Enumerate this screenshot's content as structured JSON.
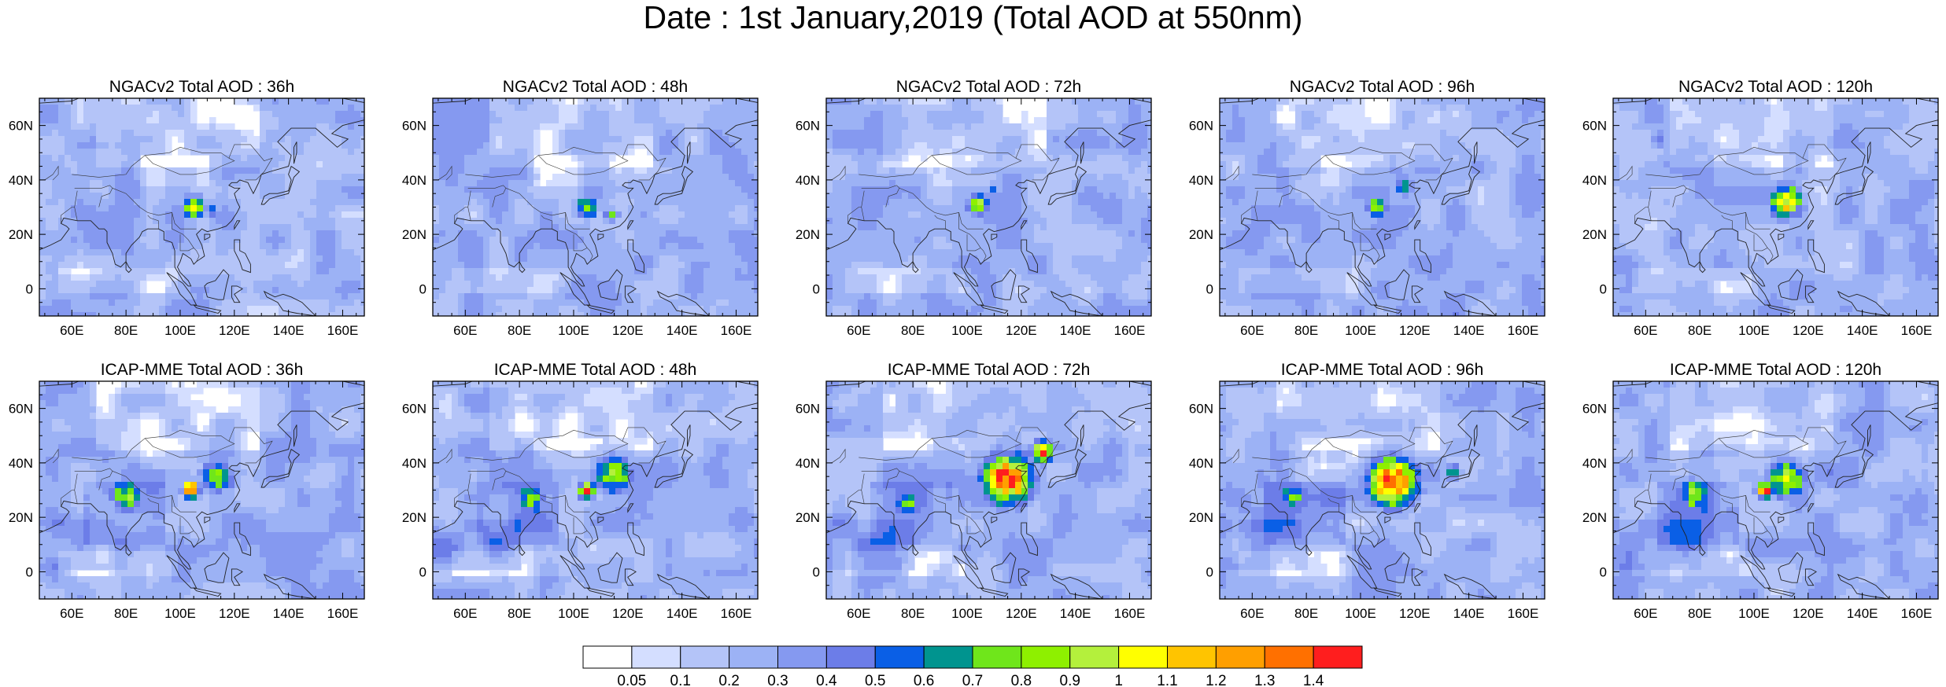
{
  "title": "Date : 1st January,2019 (Total AOD at 550nm)",
  "map": {
    "lon_range": [
      48,
      168
    ],
    "lat_range": [
      -10,
      70
    ],
    "lon_ticks": [
      "60E",
      "80E",
      "100E",
      "120E",
      "140E",
      "160E"
    ],
    "lat_ticks": [
      "0",
      "20N",
      "40N",
      "60N"
    ]
  },
  "panels": [
    {
      "row": 0,
      "title": "NGACv2 Total AOD : 36h",
      "model": "NGACv2",
      "lead": "36h",
      "hotspots": [
        {
          "lon": 105,
          "lat": 30,
          "r": 4,
          "peak": 1.05
        },
        {
          "lon": 112,
          "lat": 28,
          "r": 3,
          "peak": 0.55
        }
      ]
    },
    {
      "row": 0,
      "title": "NGACv2 Total AOD : 48h",
      "model": "NGACv2",
      "lead": "48h",
      "hotspots": [
        {
          "lon": 105,
          "lat": 30,
          "r": 4,
          "peak": 1.0
        },
        {
          "lon": 114,
          "lat": 27,
          "r": 3,
          "peak": 0.65
        }
      ]
    },
    {
      "row": 0,
      "title": "NGACv2 Total AOD : 72h",
      "model": "NGACv2",
      "lead": "72h",
      "hotspots": [
        {
          "lon": 104,
          "lat": 31,
          "r": 4,
          "peak": 0.95
        },
        {
          "lon": 110,
          "lat": 36,
          "r": 3,
          "peak": 0.55
        }
      ]
    },
    {
      "row": 0,
      "title": "NGACv2 Total AOD : 96h",
      "model": "NGACv2",
      "lead": "96h",
      "hotspots": [
        {
          "lon": 106,
          "lat": 30,
          "r": 4,
          "peak": 0.9
        },
        {
          "lon": 116,
          "lat": 38,
          "r": 4,
          "peak": 0.7
        }
      ]
    },
    {
      "row": 0,
      "title": "NGACv2 Total AOD : 120h",
      "model": "NGACv2",
      "lead": "120h",
      "hotspots": [
        {
          "lon": 112,
          "lat": 32,
          "r": 6,
          "peak": 1.15
        },
        {
          "lon": 65,
          "lat": 55,
          "r": 4,
          "peak": 0.45
        }
      ]
    },
    {
      "row": 1,
      "title": "ICAP-MME Total AOD : 36h",
      "model": "ICAP-MME",
      "lead": "36h",
      "hotspots": [
        {
          "lon": 104,
          "lat": 30,
          "r": 3,
          "peak": 1.45
        },
        {
          "lon": 114,
          "lat": 35,
          "r": 6,
          "peak": 0.85
        },
        {
          "lon": 80,
          "lat": 28,
          "r": 6,
          "peak": 0.9
        }
      ]
    },
    {
      "row": 1,
      "title": "ICAP-MME Total AOD : 48h",
      "model": "ICAP-MME",
      "lead": "48h",
      "hotspots": [
        {
          "lon": 105,
          "lat": 30,
          "r": 3,
          "peak": 1.45
        },
        {
          "lon": 115,
          "lat": 36,
          "r": 7,
          "peak": 0.95
        },
        {
          "lon": 84,
          "lat": 27,
          "r": 6,
          "peak": 0.8
        }
      ]
    },
    {
      "row": 1,
      "title": "ICAP-MME Total AOD : 72h",
      "model": "ICAP-MME",
      "lead": "72h",
      "hotspots": [
        {
          "lon": 115,
          "lat": 34,
          "r": 9,
          "peak": 1.45
        },
        {
          "lon": 128,
          "lat": 44,
          "r": 4,
          "peak": 1.3
        },
        {
          "lon": 78,
          "lat": 25,
          "r": 5,
          "peak": 0.75
        }
      ]
    },
    {
      "row": 1,
      "title": "ICAP-MME Total AOD : 96h",
      "model": "ICAP-MME",
      "lead": "96h",
      "hotspots": [
        {
          "lon": 112,
          "lat": 33,
          "r": 9,
          "peak": 1.45
        },
        {
          "lon": 75,
          "lat": 28,
          "r": 5,
          "peak": 0.75
        },
        {
          "lon": 134,
          "lat": 37,
          "r": 3,
          "peak": 0.7
        }
      ]
    },
    {
      "row": 1,
      "title": "ICAP-MME Total AOD : 120h",
      "model": "ICAP-MME",
      "lead": "120h",
      "hotspots": [
        {
          "lon": 104,
          "lat": 30,
          "r": 3,
          "peak": 1.45
        },
        {
          "lon": 112,
          "lat": 34,
          "r": 7,
          "peak": 0.95
        },
        {
          "lon": 78,
          "lat": 28,
          "r": 6,
          "peak": 0.9
        }
      ]
    }
  ],
  "colorbar": {
    "labels": [
      "0.05",
      "0.1",
      "0.2",
      "0.3",
      "0.4",
      "0.5",
      "0.6",
      "0.7",
      "0.8",
      "0.9",
      "1",
      "1.1",
      "1.2",
      "1.3",
      "1.4"
    ],
    "colors": [
      "#ffffff",
      "#d4deff",
      "#b4c4f8",
      "#9cb2f5",
      "#8599f0",
      "#6c7de8",
      "#0a5fe6",
      "#00948f",
      "#6fe61b",
      "#8ef000",
      "#b4f03c",
      "#ffff00",
      "#ffc400",
      "#ff9f00",
      "#ff7000",
      "#ff1e1e"
    ]
  },
  "colors": {
    "coast": "#222222",
    "border": "#333333"
  }
}
